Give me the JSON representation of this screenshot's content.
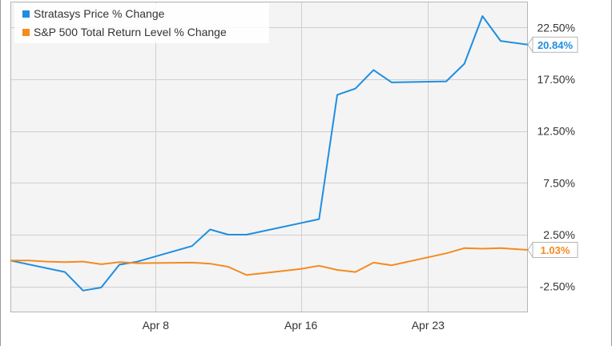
{
  "chart_data": {
    "type": "line",
    "title": "",
    "xlabel": "",
    "ylabel": "",
    "x_ticks": [
      {
        "x": 8,
        "label": "Apr 8"
      },
      {
        "x": 16,
        "label": "Apr 16"
      },
      {
        "x": 23,
        "label": "Apr 23"
      }
    ],
    "xlim": [
      0,
      28.5
    ],
    "y_ticks": [
      {
        "y": 22.5,
        "label": "22.50%"
      },
      {
        "y": 17.5,
        "label": "17.50%"
      },
      {
        "y": 12.5,
        "label": "12.50%"
      },
      {
        "y": 7.5,
        "label": "7.50%"
      },
      {
        "y": 2.5,
        "label": "2.50%"
      },
      {
        "y": -2.5,
        "label": "-2.50%"
      }
    ],
    "ylim": [
      -5.0,
      25.0
    ],
    "grid": true,
    "legend_position": "top-left",
    "series": [
      {
        "name": "Stratasys Price % Change",
        "color": "#1f8ee0",
        "end_label": "20.84%",
        "points": [
          [
            0,
            0.0
          ],
          [
            3,
            -1.1
          ],
          [
            4,
            -2.9
          ],
          [
            5,
            -2.6
          ],
          [
            6,
            -0.4
          ],
          [
            7,
            -0.1
          ],
          [
            10,
            1.4
          ],
          [
            11,
            3.0
          ],
          [
            12,
            2.5
          ],
          [
            13,
            2.5
          ],
          [
            17,
            4.0
          ],
          [
            18,
            16.0
          ],
          [
            19,
            16.6
          ],
          [
            20,
            18.4
          ],
          [
            21,
            17.2
          ],
          [
            24,
            17.3
          ],
          [
            25,
            19.0
          ],
          [
            26,
            23.6
          ],
          [
            27,
            21.2
          ],
          [
            28.5,
            20.84
          ]
        ]
      },
      {
        "name": "S&P 500 Total Return Level % Change",
        "color": "#f58a1f",
        "end_label": "1.03%",
        "points": [
          [
            0,
            0.0
          ],
          [
            1,
            0.0
          ],
          [
            2,
            -0.1
          ],
          [
            3,
            -0.15
          ],
          [
            4,
            -0.1
          ],
          [
            5,
            -0.35
          ],
          [
            6,
            -0.15
          ],
          [
            7,
            -0.25
          ],
          [
            10,
            -0.2
          ],
          [
            11,
            -0.3
          ],
          [
            12,
            -0.6
          ],
          [
            13,
            -1.4
          ],
          [
            14,
            -1.2
          ],
          [
            16,
            -0.8
          ],
          [
            17,
            -0.5
          ],
          [
            18,
            -0.9
          ],
          [
            19,
            -1.1
          ],
          [
            20,
            -0.2
          ],
          [
            21,
            -0.45
          ],
          [
            24,
            0.7
          ],
          [
            25,
            1.2
          ],
          [
            26,
            1.15
          ],
          [
            27,
            1.2
          ],
          [
            28.5,
            1.03
          ]
        ]
      }
    ]
  }
}
